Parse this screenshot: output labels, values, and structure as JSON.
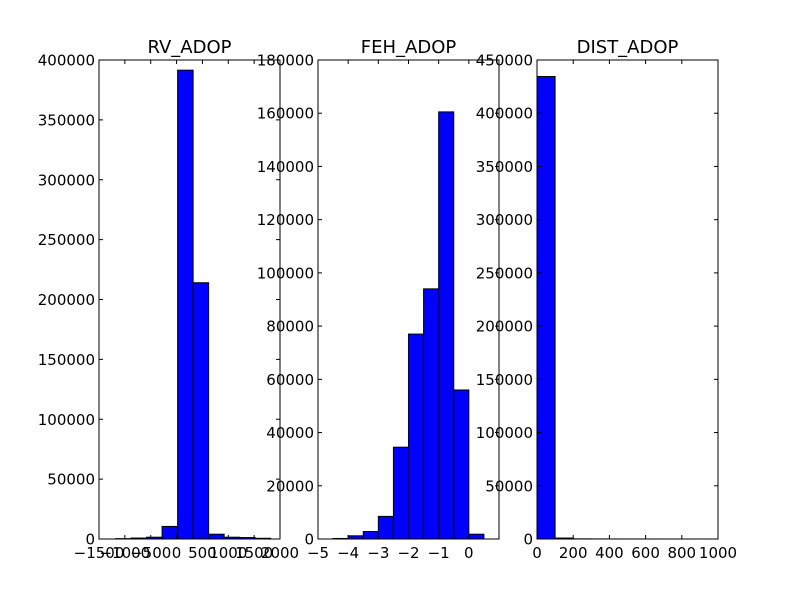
{
  "chart_data": [
    {
      "type": "bar",
      "histogram": true,
      "title": "RV_ADOP",
      "xlabel": "",
      "ylabel": "",
      "xlim": [
        -1500,
        2000
      ],
      "ylim": [
        0,
        400000
      ],
      "xticks": [
        -1500,
        -1000,
        -500,
        0,
        500,
        1000,
        1500,
        2000
      ],
      "xtick_labels": [
        "−1500",
        "−1000",
        "−500",
        "0",
        "500",
        "1000",
        "1500",
        "2000"
      ],
      "yticks": [
        0,
        50000,
        100000,
        150000,
        200000,
        250000,
        300000,
        350000,
        400000
      ],
      "ytick_labels": [
        "0",
        "50000",
        "100000",
        "150000",
        "200000",
        "250000",
        "300000",
        "350000",
        "400000"
      ],
      "bin_edges": [
        -1180,
        -880,
        -580,
        -280,
        20,
        320,
        620,
        920,
        1220,
        1520,
        1820
      ],
      "values": [
        300,
        800,
        1500,
        10500,
        391500,
        214000,
        4000,
        1500,
        1200,
        600
      ],
      "grid": false,
      "color": "#0000ff"
    },
    {
      "type": "bar",
      "histogram": true,
      "title": "FEH_ADOP",
      "xlabel": "",
      "ylabel": "",
      "xlim": [
        -5,
        1
      ],
      "ylim": [
        0,
        180000
      ],
      "xticks": [
        -5,
        -4,
        -3,
        -2,
        -1,
        0
      ],
      "xtick_labels": [
        "−5",
        "−4",
        "−3",
        "−2",
        "−1",
        "0"
      ],
      "yticks": [
        0,
        20000,
        40000,
        60000,
        80000,
        100000,
        120000,
        140000,
        160000,
        180000
      ],
      "ytick_labels": [
        "0",
        "20000",
        "40000",
        "60000",
        "80000",
        "100000",
        "120000",
        "140000",
        "160000",
        "180000"
      ],
      "bin_edges": [
        -4.5,
        -4.0,
        -3.5,
        -3.0,
        -2.5,
        -2.0,
        -1.5,
        -1.0,
        -0.5,
        0.0,
        0.5
      ],
      "values": [
        200,
        1200,
        2800,
        8500,
        34500,
        77000,
        94000,
        160500,
        56000,
        1800
      ],
      "grid": false,
      "color": "#0000ff"
    },
    {
      "type": "bar",
      "histogram": true,
      "title": "DIST_ADOP",
      "xlabel": "",
      "ylabel": "",
      "xlim": [
        0,
        1000
      ],
      "ylim": [
        0,
        450000
      ],
      "xticks": [
        0,
        200,
        400,
        600,
        800,
        1000
      ],
      "xtick_labels": [
        "0",
        "200",
        "400",
        "600",
        "800",
        "1000"
      ],
      "yticks": [
        0,
        50000,
        100000,
        150000,
        200000,
        250000,
        300000,
        350000,
        400000,
        450000
      ],
      "ytick_labels": [
        "0",
        "50000",
        "100000",
        "150000",
        "200000",
        "250000",
        "300000",
        "350000",
        "400000",
        "450000"
      ],
      "bin_edges": [
        0,
        100,
        200,
        300,
        400,
        500,
        600,
        700,
        800,
        900,
        1000
      ],
      "values": [
        434500,
        900,
        150,
        80,
        50,
        30,
        20,
        10,
        10,
        5
      ],
      "grid": false,
      "color": "#0000ff"
    }
  ]
}
